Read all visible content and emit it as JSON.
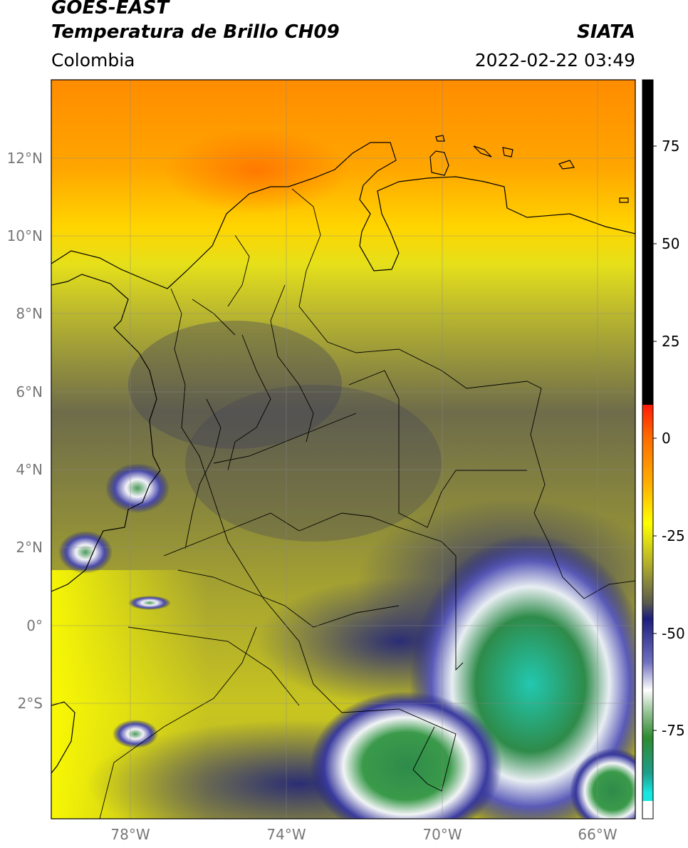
{
  "header": {
    "satellite": "GOES-EAST",
    "product": "Temperatura de Brillo CH09",
    "region": "Colombia",
    "organization": "SIATA",
    "datetime": "2022-02-22 03:49"
  },
  "map": {
    "lat_labels": [
      "12°N",
      "10°N",
      "8°N",
      "6°N",
      "4°N",
      "2°N",
      "0°",
      "2°S"
    ],
    "lon_labels": [
      "78°W",
      "74°W",
      "70°W",
      "66°W"
    ]
  },
  "colorbar": {
    "tick_labels": [
      "75",
      "50",
      "25",
      "0",
      "-25",
      "-50",
      "-75"
    ],
    "colors": {
      "warm_top": "#ff8c00",
      "black": "#000000",
      "red": "#e8170a",
      "yellow": "#ffff00",
      "olive": "#9c9c2e",
      "navy": "#1b1e7d",
      "white": "#ffffff",
      "green": "#2e8b30",
      "cyan": "#18e6e0"
    }
  }
}
